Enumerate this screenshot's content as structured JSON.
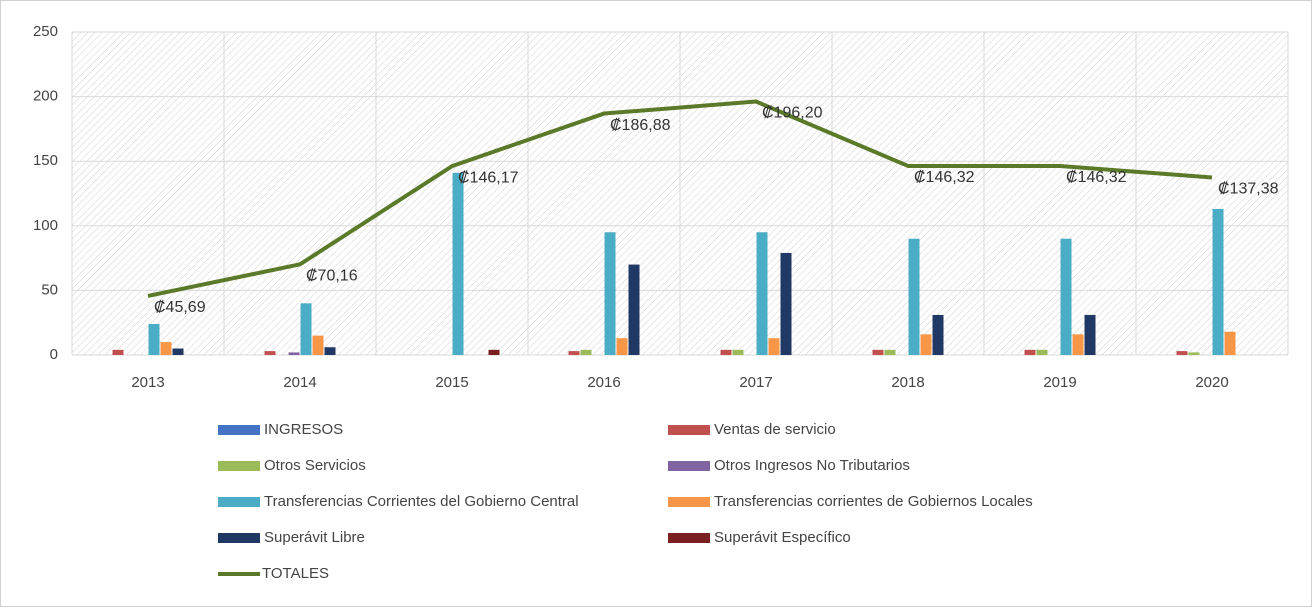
{
  "chart_data": {
    "type": "bar",
    "categories": [
      "2013",
      "2014",
      "2015",
      "2016",
      "2017",
      "2018",
      "2019",
      "2020"
    ],
    "ylim": [
      0,
      250
    ],
    "yticks": [
      0,
      50,
      100,
      150,
      200,
      250
    ],
    "grid": true,
    "series": [
      {
        "name": "INGRESOS",
        "color": "#4472c4",
        "values": [
          0,
          0,
          0,
          0,
          0,
          0,
          0,
          0
        ]
      },
      {
        "name": "Ventas de servicio",
        "color": "#c0504d",
        "values": [
          4,
          3,
          0,
          3,
          4,
          4,
          4,
          3
        ]
      },
      {
        "name": "Otros Servicios",
        "color": "#9bbb59",
        "values": [
          0,
          0,
          0,
          4,
          4,
          4,
          4,
          2
        ]
      },
      {
        "name": "Otros Ingresos No Tributarios",
        "color": "#8064a2",
        "values": [
          0,
          2,
          0,
          0,
          0,
          0,
          0,
          0
        ]
      },
      {
        "name": "Transferencias Corrientes del Gobierno Central",
        "color": "#4bacc6",
        "values": [
          24,
          40,
          141,
          95,
          95,
          90,
          90,
          113
        ]
      },
      {
        "name": "Transferencias corrientes de Gobiernos Locales",
        "color": "#f79646",
        "values": [
          10,
          15,
          0,
          13,
          13,
          16,
          16,
          18
        ]
      },
      {
        "name": "Superávit Libre",
        "color": "#1f3864",
        "values": [
          5,
          6,
          0,
          70,
          79,
          31,
          31,
          0
        ]
      },
      {
        "name": "Superávit Específico",
        "color": "#7b2020",
        "values": [
          0,
          0,
          4,
          0,
          0,
          0,
          0,
          0
        ]
      },
      {
        "name": "TOTALES",
        "type": "line",
        "color": "#5a7a2a",
        "values": [
          45.69,
          70.16,
          146.17,
          186.88,
          196.2,
          146.32,
          146.32,
          137.38
        ],
        "value_labels": [
          "₡45,69",
          "₡70,16",
          "₡146,17",
          "₡186,88",
          "₡196,20",
          "₡146,32",
          "₡146,32",
          "₡137,38"
        ]
      }
    ]
  }
}
